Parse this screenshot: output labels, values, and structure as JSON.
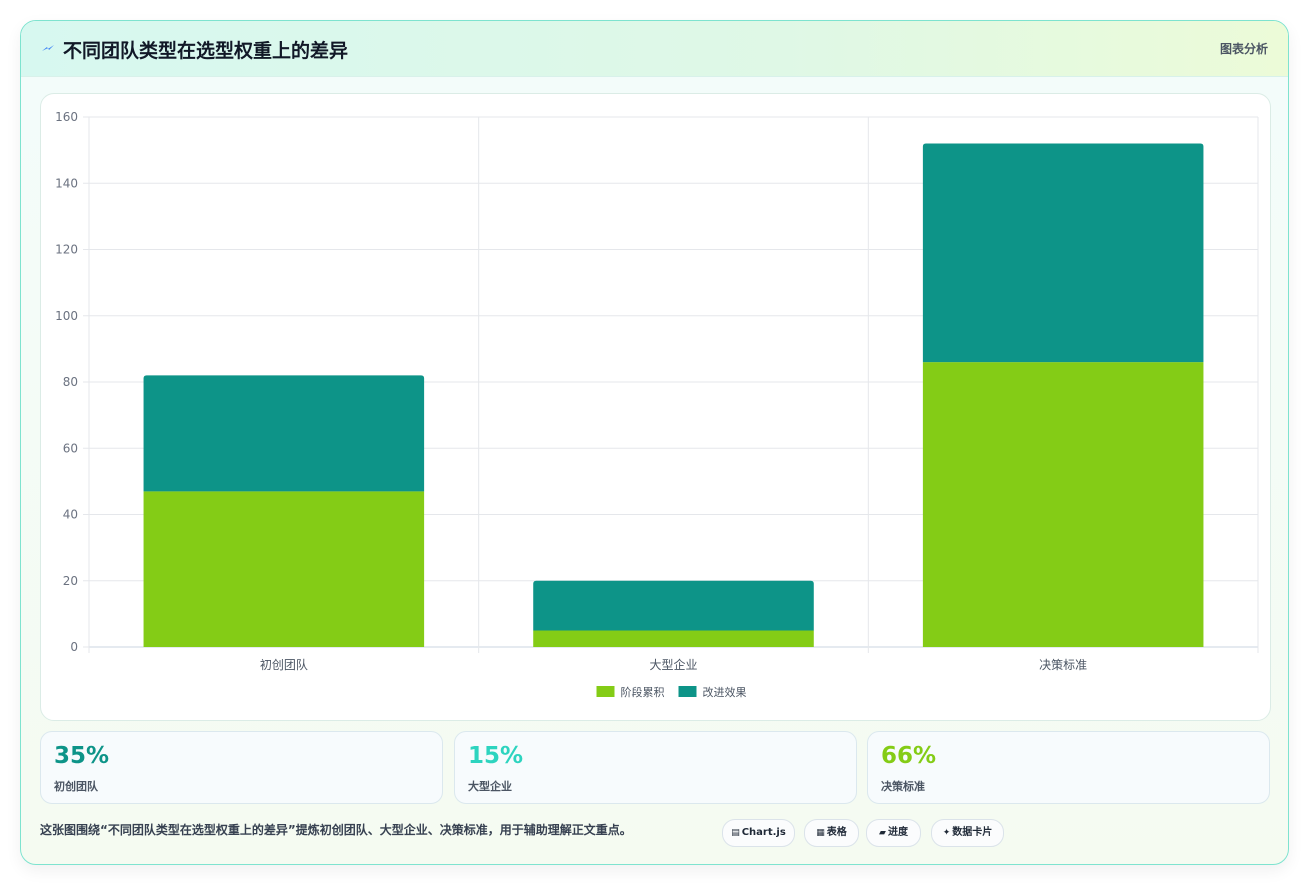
{
  "header": {
    "icon": "lightning-icon",
    "title": "不同团队类型在选型权重上的差异",
    "tag": "图表分析"
  },
  "chart_data": {
    "type": "bar",
    "stacked": true,
    "categories": [
      "初创团队",
      "大型企业",
      "决策标准"
    ],
    "series": [
      {
        "name": "阶段累积",
        "color": "#84cc16",
        "values": [
          47,
          5,
          86
        ]
      },
      {
        "name": "改进效果",
        "color": "#0d9488",
        "values": [
          35,
          15,
          66
        ]
      }
    ],
    "yticks": [
      0,
      20,
      40,
      60,
      80,
      100,
      120,
      140,
      160
    ],
    "ylim": [
      0,
      160
    ],
    "grid": true,
    "legend": "bottom"
  },
  "stats": [
    {
      "value": "35%",
      "label": "初创团队",
      "color": "#0d9488"
    },
    {
      "value": "15%",
      "label": "大型企业",
      "color": "#2dd4bf"
    },
    {
      "value": "66%",
      "label": "决策标准",
      "color": "#84cc16"
    }
  ],
  "caption": "这张图围绕“不同团队类型在选型权重上的差异”提炼初创团队、大型企业、决策标准，用于辅助理解正文重点。",
  "chips": [
    {
      "icon": "▤",
      "icon_name": "chart-icon",
      "label": "Chart.js"
    },
    {
      "icon": "▦",
      "icon_name": "table-icon",
      "label": "表格"
    },
    {
      "icon": "▰",
      "icon_name": "progress-icon",
      "label": "进度"
    },
    {
      "icon": "✦",
      "icon_name": "card-icon",
      "label": "数据卡片"
    }
  ]
}
